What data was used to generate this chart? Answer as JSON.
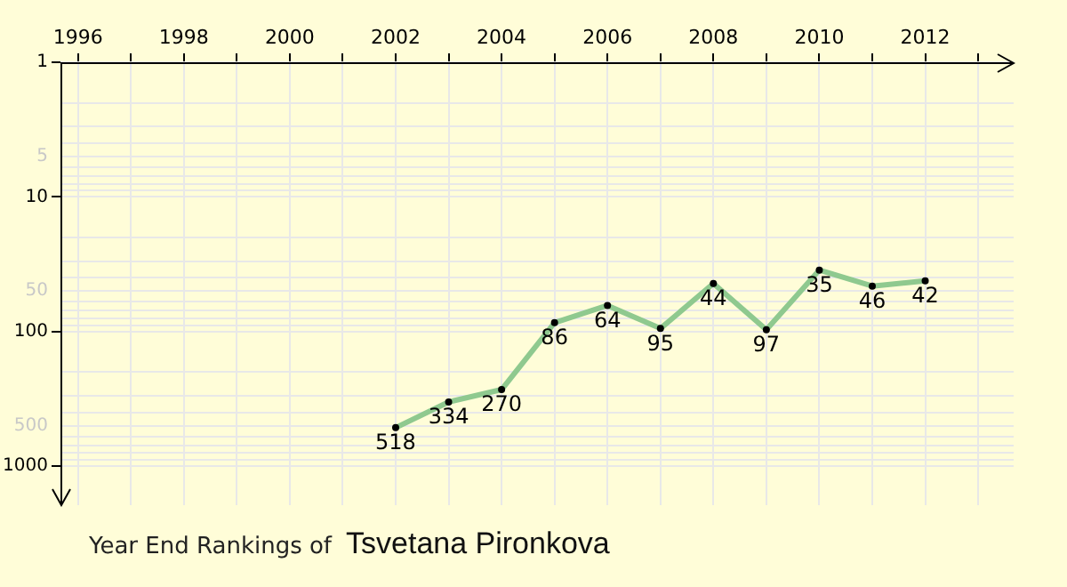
{
  "chart_data": {
    "type": "line",
    "title": "Year End Rankings of",
    "subtitle": "Tsvetana Pironkova",
    "x": [
      2002,
      2003,
      2004,
      2005,
      2006,
      2007,
      2008,
      2009,
      2010,
      2011,
      2012
    ],
    "series": [
      {
        "color": "#8fc98f",
        "values": [
          518,
          334,
          270,
          86,
          64,
          95,
          44,
          97,
          35,
          46,
          42
        ]
      }
    ],
    "xlim": [
      1995.67,
      2013.67
    ],
    "xticks": [
      1996,
      {
        "value": 1997,
        "label": null
      },
      1998,
      {
        "value": 1999,
        "label": null
      },
      2000,
      {
        "value": 2001,
        "label": null
      },
      2002,
      {
        "value": 2003,
        "label": null
      },
      2004,
      {
        "value": 2005,
        "label": null
      },
      2006,
      {
        "value": 2007,
        "label": null
      },
      2008,
      {
        "value": 2009,
        "label": null
      },
      2010,
      {
        "value": 2011,
        "label": null
      },
      2012,
      {
        "value": 2013,
        "label": null
      }
    ],
    "ylim": [
      1950,
      1
    ],
    "yticks": [
      1,
      {
        "value": 2,
        "label": null
      },
      {
        "value": 3,
        "label": null
      },
      {
        "value": 4,
        "label": null
      },
      5,
      {
        "value": 6,
        "label": null
      },
      {
        "value": 7,
        "label": null
      },
      {
        "value": 8,
        "label": null
      },
      {
        "value": 9,
        "label": null
      },
      10,
      {
        "value": 20,
        "label": null
      },
      {
        "value": 30,
        "label": null
      },
      {
        "value": 40,
        "label": null
      },
      50,
      {
        "value": 60,
        "label": null
      },
      {
        "value": 70,
        "label": null
      },
      {
        "value": 80,
        "label": null
      },
      {
        "value": 90,
        "label": null
      },
      100,
      {
        "value": 200,
        "label": null
      },
      {
        "value": 300,
        "label": null
      },
      {
        "value": 400,
        "label": null
      },
      500,
      {
        "value": 600,
        "label": null
      },
      {
        "value": 700,
        "label": null
      },
      {
        "value": 800,
        "label": null
      },
      {
        "value": 900,
        "label": null
      },
      1000
    ],
    "log": "y",
    "grid": true,
    "legend": false,
    "marker": "circle",
    "line_style": "solid",
    "data_labels": true
  }
}
